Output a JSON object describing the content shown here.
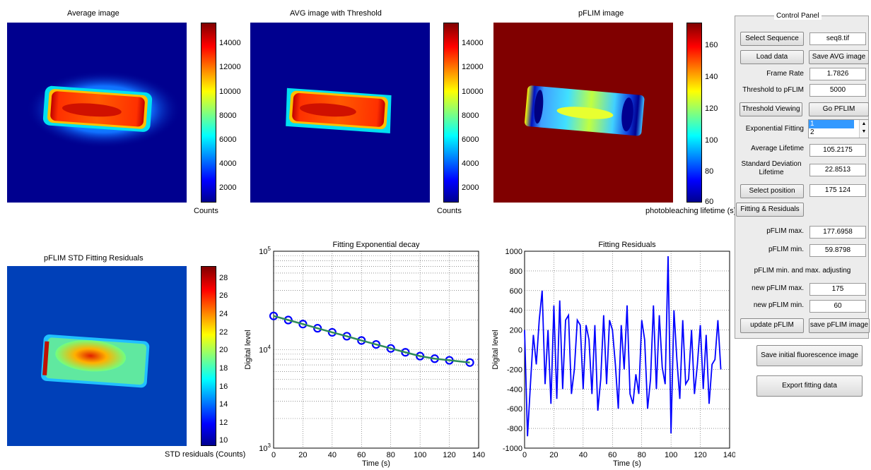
{
  "panels": {
    "avg": {
      "title": "Average image",
      "cbar_label": "Counts",
      "ticks": [
        "14000",
        "12000",
        "10000",
        "8000",
        "6000",
        "4000",
        "2000"
      ]
    },
    "thr": {
      "title": "AVG image with Threshold",
      "cbar_label": "Counts",
      "ticks": [
        "14000",
        "12000",
        "10000",
        "8000",
        "6000",
        "4000",
        "2000"
      ]
    },
    "pflim": {
      "title": "pFLIM image",
      "cbar_label": "photobleaching lifetime (s)",
      "ticks": [
        "160",
        "140",
        "120",
        "100",
        "80",
        "60"
      ]
    },
    "std": {
      "title": "pFLIM STD Fitting Residuals",
      "cbar_label": "STD residuals (Counts)",
      "ticks": [
        "28",
        "26",
        "24",
        "22",
        "20",
        "18",
        "16",
        "14",
        "12",
        "10"
      ]
    }
  },
  "colors": {
    "jet_low": "#00008f",
    "jet_high": "#800000",
    "panel_bg": "#ececec",
    "line_blue": "#0000ff",
    "fit_green": "#2e8b57"
  },
  "control_panel": {
    "title": "Control Panel",
    "select_sequence": "Select Sequence",
    "sequence_file": "seq8.tif",
    "load_data": "Load data",
    "save_avg": "Save AVG image",
    "frame_rate_label": "Frame Rate",
    "frame_rate": "1.7826",
    "threshold_label": "Threshold to pFLIM",
    "threshold": "5000",
    "threshold_viewing": "Threshold Viewing",
    "go_pflim": "Go PFLIM",
    "exp_fitting_label": "Exponential Fitting",
    "exp_options": [
      "1",
      "2"
    ],
    "avg_lifetime_label": "Average Lifetime",
    "avg_lifetime": "105.2175",
    "std_lifetime_label": "Standard Deviation Lifetime",
    "std_lifetime": "22.8513",
    "select_position": "Select position",
    "position": "175  124",
    "fitting_residuals": "Fitting & Residuals",
    "pflim_max_label": "pFLIM max.",
    "pflim_max": "177.6958",
    "pflim_min_label": "pFLIM min.",
    "pflim_min": "59.8798",
    "adjust_label": "pFLIM min. and max. adjusting",
    "new_max_label": "new pFLIM max.",
    "new_max": "175",
    "new_min_label": "new pFLIM min.",
    "new_min": "60",
    "update_pflim": "update pFLIM",
    "save_pflim": "save pFLIM image",
    "save_initial": "Save initial fluorescence image",
    "export_fitting": "Export fitting data"
  },
  "chart_data": [
    {
      "type": "scatter",
      "title": "Fitting Exponential decay",
      "xlabel": "Time (s)",
      "ylabel": "Digital level",
      "xlim": [
        0,
        140
      ],
      "ylim": [
        1000,
        100000
      ],
      "yscale": "log",
      "grid": true,
      "xticks": [
        "0",
        "20",
        "40",
        "60",
        "80",
        "100",
        "120",
        "140"
      ],
      "yticks": [
        "10^5",
        "10^4",
        "10^3"
      ],
      "series": [
        {
          "x": [
            0,
            10,
            20,
            30,
            40,
            50,
            60,
            70,
            80,
            90,
            100,
            110,
            120,
            134
          ],
          "y": [
            22000,
            20000,
            18200,
            16500,
            15000,
            13700,
            12400,
            11300,
            10300,
            9400,
            8600,
            8100,
            7800,
            7400
          ]
        }
      ]
    },
    {
      "type": "line",
      "title": "Fitting Residuals",
      "xlabel": "Time (s)",
      "ylabel": "Digital level",
      "xlim": [
        0,
        140
      ],
      "ylim": [
        -1000,
        1000
      ],
      "grid": true,
      "xticks": [
        "0",
        "20",
        "40",
        "60",
        "80",
        "100",
        "120",
        "140"
      ],
      "yticks": [
        "1000",
        "800",
        "600",
        "400",
        "200",
        "0",
        "-200",
        "-400",
        "-600",
        "-800",
        "-1000"
      ],
      "series": [
        {
          "x": [
            0,
            2,
            4,
            6,
            8,
            10,
            12,
            14,
            16,
            18,
            20,
            22,
            24,
            26,
            28,
            30,
            32,
            34,
            36,
            38,
            40,
            42,
            44,
            46,
            48,
            50,
            52,
            54,
            56,
            58,
            60,
            62,
            64,
            66,
            68,
            70,
            72,
            74,
            76,
            78,
            80,
            82,
            84,
            86,
            88,
            90,
            92,
            94,
            96,
            98,
            100,
            102,
            104,
            106,
            108,
            110,
            112,
            114,
            116,
            118,
            120,
            122,
            124,
            126,
            128,
            130,
            132,
            134
          ],
          "y": [
            200,
            -880,
            -350,
            150,
            -150,
            300,
            600,
            -350,
            200,
            -550,
            450,
            -500,
            500,
            -400,
            300,
            350,
            -450,
            -200,
            300,
            250,
            -400,
            250,
            100,
            -450,
            250,
            -620,
            -300,
            350,
            -350,
            300,
            200,
            -150,
            -600,
            250,
            -200,
            450,
            -450,
            -550,
            -250,
            -450,
            300,
            100,
            -600,
            -300,
            450,
            -400,
            350,
            -180,
            -350,
            950,
            -850,
            400,
            -100,
            -500,
            300,
            -350,
            -300,
            200,
            -450,
            -150,
            250,
            -400,
            150,
            -550,
            -150,
            -100,
            300,
            -200
          ]
        }
      ]
    }
  ]
}
